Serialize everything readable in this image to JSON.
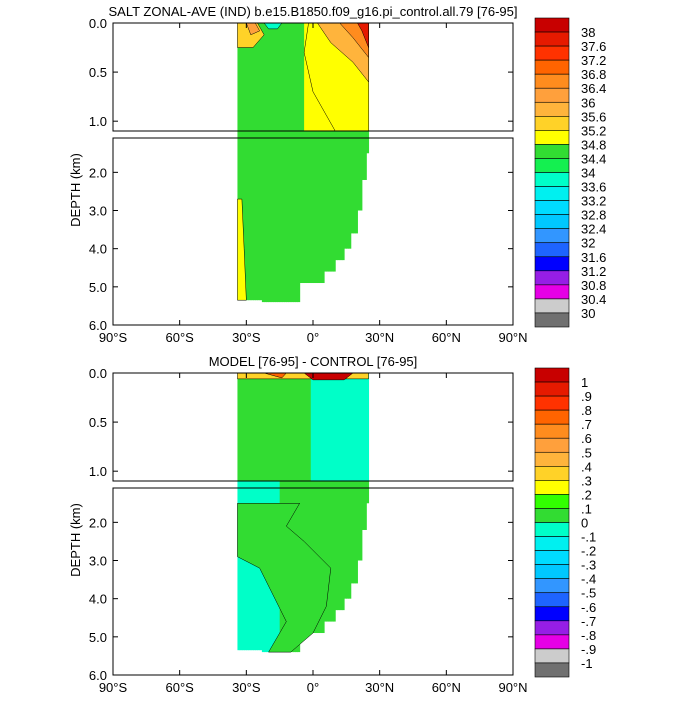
{
  "chart_data": [
    {
      "type": "heatmap",
      "title": "SALT ZONAL-AVE (IND) b.e15.B1850.f09_g16.pi_control.all.79 [76-95]",
      "ylabel": "DEPTH (km)",
      "xlim": [
        -90,
        90
      ],
      "ylim": [
        0,
        6
      ],
      "data_extent": {
        "lat_min": -34,
        "lat_max": 25,
        "depth_max": 5.4
      },
      "x_ticks": [
        {
          "value": -90,
          "label": "90°S"
        },
        {
          "value": -60,
          "label": "60°S"
        },
        {
          "value": -30,
          "label": "30°S"
        },
        {
          "value": 0,
          "label": "0°"
        },
        {
          "value": 30,
          "label": "30°N"
        },
        {
          "value": 60,
          "label": "60°N"
        },
        {
          "value": 90,
          "label": "90°N"
        }
      ],
      "y_ticks_upper": [
        {
          "value": 0,
          "label": "0.0"
        },
        {
          "value": 0.5,
          "label": "0.5"
        },
        {
          "value": 1.0,
          "label": "1.0"
        }
      ],
      "y_ticks_lower": [
        {
          "value": 2,
          "label": "2.0"
        },
        {
          "value": 3,
          "label": "3.0"
        },
        {
          "value": 4,
          "label": "4.0"
        },
        {
          "value": 5,
          "label": "5.0"
        },
        {
          "value": 6,
          "label": "6.0"
        }
      ],
      "colorbar": {
        "labels": [
          "38",
          "37.6",
          "37.2",
          "36.8",
          "36.4",
          "36",
          "35.6",
          "35.2",
          "34.8",
          "34.4",
          "34",
          "33.6",
          "33.2",
          "32.8",
          "32.4",
          "32",
          "31.6",
          "31.2",
          "30.8",
          "30.4",
          "30"
        ],
        "colors": [
          "#c80000",
          "#e61a00",
          "#ff3200",
          "#ff6400",
          "#ff8c1e",
          "#ffa03c",
          "#ffb43c",
          "#ffd228",
          "#ffff00",
          "#32dc32",
          "#14f050",
          "#00ffc8",
          "#00f0f0",
          "#00dcff",
          "#00c8ff",
          "#3296ff",
          "#1e64ff",
          "#0000ff",
          "#961ee6",
          "#e600e6",
          "#cccccc",
          "#707070"
        ]
      },
      "regions": [
        {
          "name": "upper",
          "value_class": 34.8,
          "color": "#ffff00"
        },
        {
          "name": "mid",
          "value_class": 34.6,
          "color": "#32dc32"
        },
        {
          "name": "arabian-sea-surface",
          "value_class": 36.4,
          "color": "#ff8c1e"
        }
      ]
    },
    {
      "type": "heatmap",
      "title": "MODEL [76-95] - CONTROL [76-95]",
      "ylabel": "DEPTH (km)",
      "xlim": [
        -90,
        90
      ],
      "ylim": [
        0,
        6
      ],
      "data_extent": {
        "lat_min": -34,
        "lat_max": 25,
        "depth_max": 5.4
      },
      "x_ticks": [
        {
          "value": -90,
          "label": "90°S"
        },
        {
          "value": -60,
          "label": "60°S"
        },
        {
          "value": -30,
          "label": "30°S"
        },
        {
          "value": 0,
          "label": "0°"
        },
        {
          "value": 30,
          "label": "30°N"
        },
        {
          "value": 60,
          "label": "60°N"
        },
        {
          "value": 90,
          "label": "90°N"
        }
      ],
      "y_ticks_upper": [
        {
          "value": 0,
          "label": "0.0"
        },
        {
          "value": 0.5,
          "label": "0.5"
        },
        {
          "value": 1.0,
          "label": "1.0"
        }
      ],
      "y_ticks_lower": [
        {
          "value": 2,
          "label": "2.0"
        },
        {
          "value": 3,
          "label": "3.0"
        },
        {
          "value": 4,
          "label": "4.0"
        },
        {
          "value": 5,
          "label": "5.0"
        },
        {
          "value": 6,
          "label": "6.0"
        }
      ],
      "colorbar": {
        "labels": [
          "1",
          ".9",
          ".8",
          ".7",
          ".6",
          ".5",
          ".4",
          ".3",
          ".2",
          ".1",
          "0",
          "-.1",
          "-.2",
          "-.3",
          "-.4",
          "-.5",
          "-.6",
          "-.7",
          "-.8",
          "-.9",
          "-1"
        ],
        "colors": [
          "#c80000",
          "#e61a00",
          "#ff3200",
          "#ff6400",
          "#ff8c1e",
          "#ffa03c",
          "#ffb43c",
          "#ffd228",
          "#ffff00",
          "#32ff00",
          "#32dc32",
          "#00ffc8",
          "#00f0f0",
          "#00dcff",
          "#00c8ff",
          "#3296ff",
          "#1e64ff",
          "#0000ff",
          "#961ee6",
          "#e600e6",
          "#cccccc",
          "#707070"
        ]
      },
      "regions": [
        {
          "name": "positive",
          "value_class": 0.05,
          "color": "#32dc32"
        },
        {
          "name": "negative",
          "value_class": -0.05,
          "color": "#00ffc8"
        },
        {
          "name": "surface-max",
          "value_class": 1.0,
          "color": "#c80000"
        }
      ]
    }
  ]
}
